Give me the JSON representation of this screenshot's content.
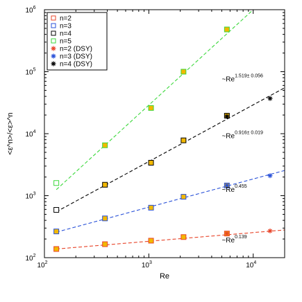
{
  "chart_data": {
    "type": "scatter",
    "xlabel": "Re",
    "ylabel": "<ε^n>/<ε>^n",
    "xscale": "log",
    "yscale": "log",
    "xlim": [
      100,
      20000
    ],
    "ylim": [
      100,
      1000000
    ],
    "xticks": [
      {
        "base": "10",
        "exp": "2",
        "value": 100
      },
      {
        "base": "10",
        "exp": "3",
        "value": 1000
      },
      {
        "base": "10",
        "exp": "4",
        "value": 10000
      }
    ],
    "yticks": [
      {
        "base": "10",
        "exp": "2",
        "value": 100
      },
      {
        "base": "10",
        "exp": "3",
        "value": 1000
      },
      {
        "base": "10",
        "exp": "4",
        "value": 10000
      },
      {
        "base": "10",
        "exp": "5",
        "value": 100000
      },
      {
        "base": "10",
        "exp": "6",
        "value": 1000000
      }
    ],
    "legend_position": "top-left",
    "series": [
      {
        "name": "n=2",
        "marker": "square",
        "color": "#e8452a",
        "fill": "#f2b800",
        "x": [
          130,
          380,
          1050,
          2150,
          5600
        ],
        "y": [
          138,
          165,
          188,
          215,
          245
        ]
      },
      {
        "name": "n=3",
        "marker": "square",
        "color": "#2850d8",
        "fill": "#f2b800",
        "x": [
          130,
          380,
          1050,
          2150,
          5600
        ],
        "y": [
          265,
          430,
          640,
          960,
          1460
        ]
      },
      {
        "name": "n=4",
        "marker": "square",
        "color": "#000000",
        "fill": "#f2b800",
        "x": [
          130,
          380,
          1050,
          2150,
          5600
        ],
        "y": [
          590,
          1500,
          3400,
          7800,
          19500
        ]
      },
      {
        "name": "n=5",
        "marker": "square",
        "color": "#3cd83c",
        "fill": "#f2b800",
        "x": [
          130,
          380,
          1050,
          2150,
          5600
        ],
        "y": [
          1600,
          6500,
          26000,
          100000,
          480000
        ]
      },
      {
        "name": "n=2 (DSY)",
        "marker": "star",
        "color": "#e8452a",
        "x": [
          5600,
          14500
        ],
        "y": [
          245,
          270
        ]
      },
      {
        "name": "n=3 (DSY)",
        "marker": "star",
        "color": "#2850d8",
        "x": [
          5600,
          14500
        ],
        "y": [
          1460,
          2100
        ]
      },
      {
        "name": "n=4 (DSY)",
        "marker": "star",
        "color": "#000000",
        "x": [
          5600,
          14500
        ],
        "y": [
          19000,
          37000
        ]
      }
    ],
    "fits": [
      {
        "color": "#e8452a",
        "x": [
          130,
          20000
        ],
        "y": [
          138,
          280
        ]
      },
      {
        "color": "#2850d8",
        "x": [
          130,
          20000
        ],
        "y": [
          258,
          2550
        ]
      },
      {
        "color": "#000000",
        "x": [
          130,
          20000
        ],
        "y": [
          550,
          55000
        ]
      },
      {
        "color": "#3cd83c",
        "x": [
          130,
          10000
        ],
        "y": [
          1250,
          1000000
        ]
      }
    ],
    "annotations": [
      {
        "base": "~Re",
        "sup": "1.519± 0.056",
        "x": 5000,
        "y": 70000
      },
      {
        "base": "~Re",
        "sup": "0.916± 0.019",
        "x": 5000,
        "y": 8500
      },
      {
        "base": "~Re",
        "sup": "0.455",
        "x": 5000,
        "y": 1150
      },
      {
        "base": "~Re",
        "sup": "0.139",
        "x": 5000,
        "y": 176
      }
    ]
  }
}
